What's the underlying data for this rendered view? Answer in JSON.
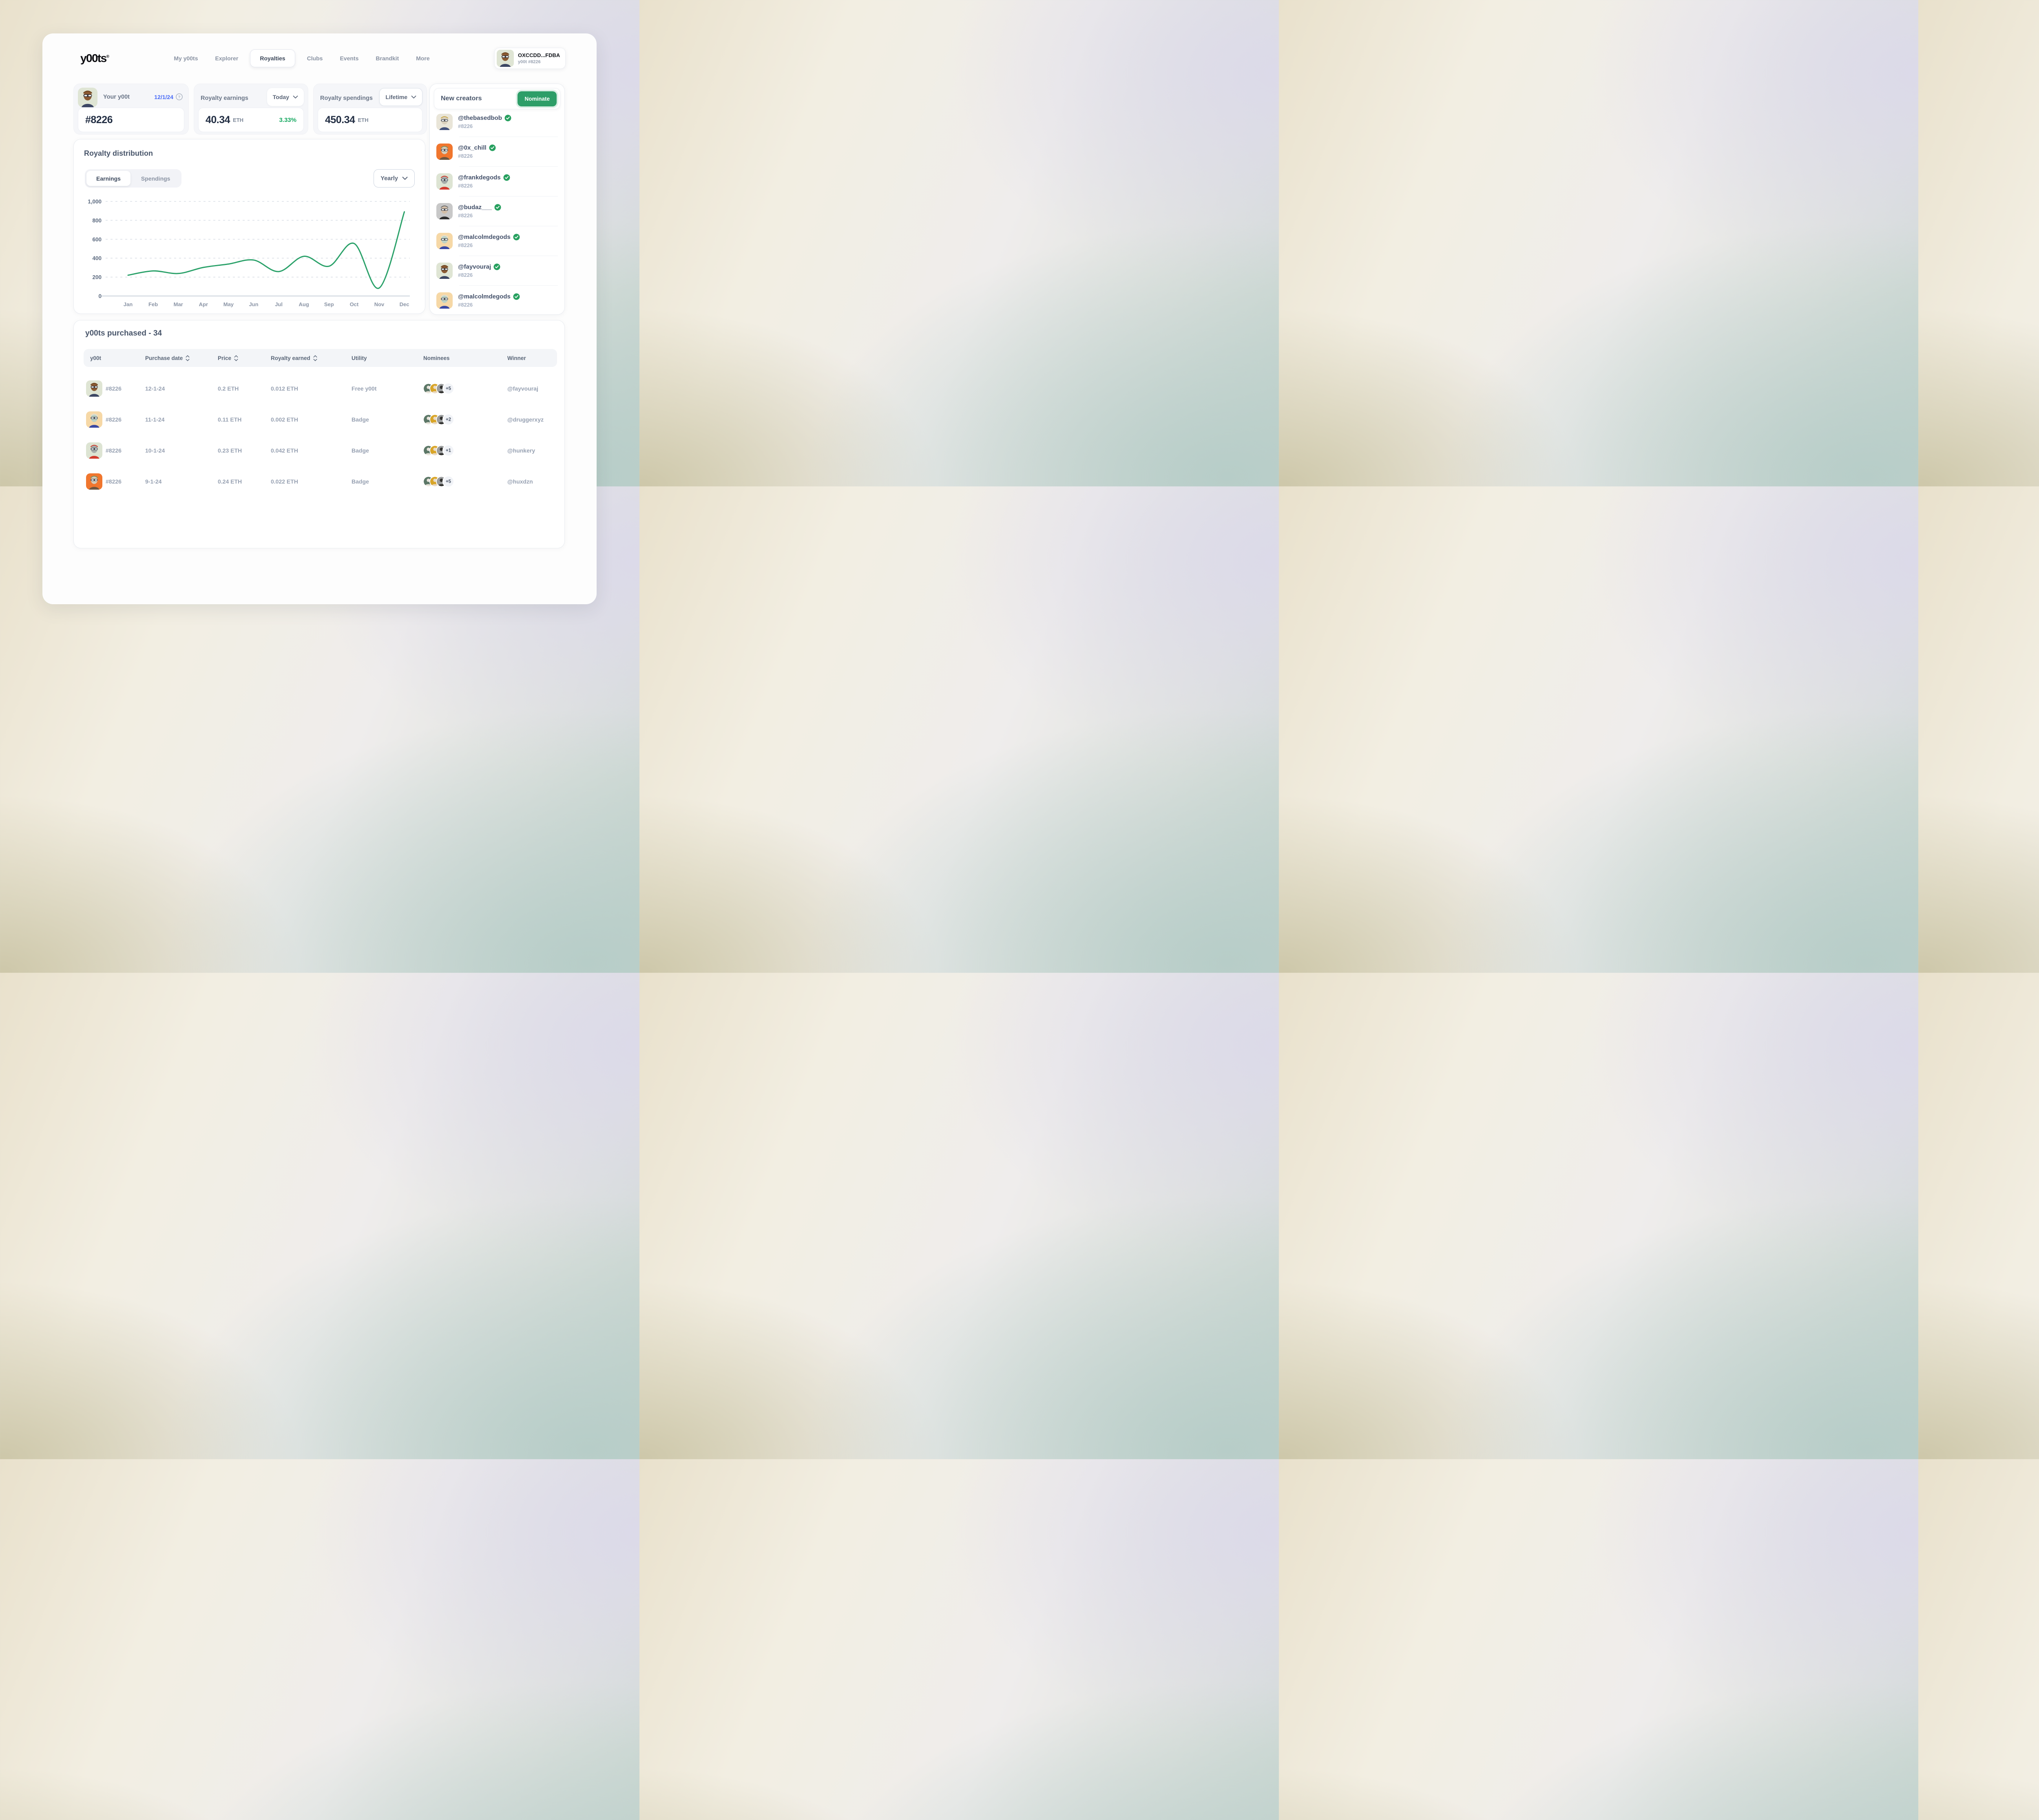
{
  "colors": {
    "accent_green": "#2d9e68",
    "verified_green": "#27a05f",
    "chart_line": "#2aa169",
    "positive_green": "#17a961",
    "date_blue": "#4a6cf7"
  },
  "icons": {
    "dropdown": "chevron-down",
    "help": "question-circle",
    "sort": "sort-arrows",
    "verified": "check-seal"
  },
  "avatars": {
    "sage_brown": {
      "bg": "#dfe5d4",
      "skin": "#8a5a33",
      "hair": "#6f451f",
      "shirt": "#3c4663"
    },
    "based_bob": {
      "bg": "#e9e5d8",
      "skin": "#d9cfbc",
      "hair": "#c9a84c",
      "shirt": "#41507a"
    },
    "orange_chill": {
      "bg": "#f0762e",
      "skin": "#d6cbb8",
      "hair": "#7d8f62",
      "shirt": "#6d5640"
    },
    "frank": {
      "bg": "#dde4d3",
      "skin": "#a7adab",
      "hair": "#cf3b2e",
      "shirt": "#d23b2f"
    },
    "budaz": {
      "bg": "#c8c8c8",
      "skin": "#d2bda6",
      "hair": "#6e6e6e",
      "shirt": "#2e2e2e"
    },
    "malcolm": {
      "bg": "#f6d8a6",
      "skin": "#bed2c5",
      "hair": "#e6e1d3",
      "shirt": "#3a49a3"
    }
  },
  "header": {
    "logo": "y00ts",
    "logo_trademark": "®",
    "nav": [
      {
        "label": "My y00ts",
        "active": false
      },
      {
        "label": "Explorer",
        "active": false
      },
      {
        "label": "Royalties",
        "active": true
      },
      {
        "label": "Clubs",
        "active": false
      },
      {
        "label": "Events",
        "active": false
      },
      {
        "label": "Brandkit",
        "active": false
      },
      {
        "label": "More",
        "active": false
      }
    ],
    "profile": {
      "name": "OXCCDD...FDBA",
      "subtitle": "y00t #8226",
      "avatar": "sage_brown"
    }
  },
  "stats": {
    "your_yoot": {
      "label": "Your y00t",
      "date": "12/1/24",
      "value": "#8226",
      "avatar": "sage_brown"
    },
    "earnings": {
      "label": "Royalty earnings",
      "period": "Today",
      "value": "40.34",
      "unit": "ETH",
      "change": "3.33%"
    },
    "spendings": {
      "label": "Royalty spendings",
      "period": "Lifetime",
      "value": "450.34",
      "unit": "ETH"
    }
  },
  "new_creators": {
    "title": "New creators",
    "button_label": "Nominate",
    "items": [
      {
        "handle": "@thebasedbob",
        "id": "#8226",
        "verified": true,
        "avatar": "based_bob"
      },
      {
        "handle": "@0x_chill",
        "id": "#8226",
        "verified": true,
        "avatar": "orange_chill"
      },
      {
        "handle": "@frankdegods",
        "id": "#8226",
        "verified": true,
        "avatar": "frank"
      },
      {
        "handle": "@budaz___",
        "id": "#8226",
        "verified": true,
        "avatar": "budaz"
      },
      {
        "handle": "@malcolmdegods",
        "id": "#8226",
        "verified": true,
        "avatar": "malcolm"
      },
      {
        "handle": "@fayvouraj",
        "id": "#8226",
        "verified": true,
        "avatar": "sage_brown"
      },
      {
        "handle": "@malcolmdegods",
        "id": "#8226",
        "verified": true,
        "avatar": "malcolm"
      }
    ]
  },
  "royalty_distribution": {
    "title": "Royalty distribution",
    "tabs": [
      {
        "label": "Earnings",
        "active": true
      },
      {
        "label": "Spendings",
        "active": false
      }
    ],
    "period": "Yearly"
  },
  "chart_data": {
    "type": "line",
    "title": "Royalty distribution",
    "x": [
      "Jan",
      "Feb",
      "Mar",
      "Apr",
      "May",
      "Jun",
      "Jul",
      "Aug",
      "Sep",
      "Oct",
      "Nov",
      "Dec"
    ],
    "series": [
      {
        "name": "Earnings",
        "values": [
          220,
          265,
          238,
          302,
          338,
          380,
          258,
          420,
          315,
          555,
          85,
          890
        ]
      }
    ],
    "xlabel": "",
    "ylabel": "",
    "ylim": [
      0,
      1000
    ],
    "yticks": [
      0,
      200,
      400,
      600,
      800,
      1000
    ],
    "ytick_labels": [
      "0",
      "200",
      "400",
      "600",
      "800",
      "1,000"
    ],
    "grid": "horizontal-dashed",
    "legend": "none",
    "line_color": "#2aa169"
  },
  "table": {
    "title": "y00ts purchased - 34",
    "columns": [
      {
        "label": "y00t",
        "sortable": false
      },
      {
        "label": "Purchase date",
        "sortable": true
      },
      {
        "label": "Price",
        "sortable": true
      },
      {
        "label": "Royalty earned",
        "sortable": true
      },
      {
        "label": "Utility",
        "sortable": false
      },
      {
        "label": "Nominees",
        "sortable": false
      },
      {
        "label": "Winner",
        "sortable": false
      }
    ],
    "nominee_avatar_colors": [
      {
        "bg": "#5c7767",
        "person": "#e8e4da"
      },
      {
        "bg": "#d9a527",
        "person": "#e9d9c4"
      },
      {
        "bg": "#9b9d9e",
        "person": "#30302e"
      }
    ],
    "rows": [
      {
        "id": "#8226",
        "purchase_date": "12-1-24",
        "price": "0.2 ETH",
        "royalty_earned": "0.012 ETH",
        "utility": "Free y00t",
        "nominees_extra": "+5",
        "winner": "@fayvouraj",
        "avatar": "sage_brown"
      },
      {
        "id": "#8226",
        "purchase_date": "11-1-24",
        "price": "0.11 ETH",
        "royalty_earned": "0.002 ETH",
        "utility": "Badge",
        "nominees_extra": "+2",
        "winner": "@druggerxyz",
        "avatar": "malcolm"
      },
      {
        "id": "#8226",
        "purchase_date": "10-1-24",
        "price": "0.23 ETH",
        "royalty_earned": "0.042 ETH",
        "utility": "Badge",
        "nominees_extra": "+1",
        "winner": "@hunkery",
        "avatar": "frank"
      },
      {
        "id": "#8226",
        "purchase_date": "9-1-24",
        "price": "0.24 ETH",
        "royalty_earned": "0.022 ETH",
        "utility": "Badge",
        "nominees_extra": "+5",
        "winner": "@huxdzn",
        "avatar": "orange_chill"
      }
    ]
  }
}
